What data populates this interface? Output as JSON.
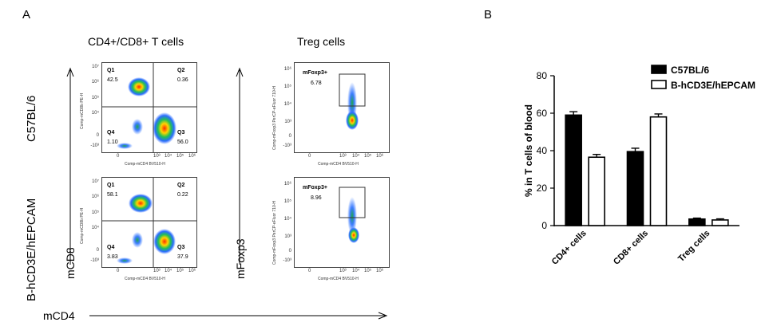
{
  "panel_a": {
    "letter": "A",
    "col_titles": [
      "CD4+/CD8+ T cells",
      "Treg cells"
    ],
    "row_labels": [
      "C57BL/6",
      "B-hCD3E/hEPCAM"
    ],
    "axis_mcd8": "mCD8",
    "axis_mfoxp3": "mFoxp3",
    "axis_mcd4": "mCD4",
    "flow_x_label": "Comp-mCD4 BV510-H",
    "flow_y_label_cd8": "Comp-mCD8b PE-H",
    "flow_y_label_foxp3": "Comp-mFoxp3 PerCP-eFluor 710-H",
    "quadrant_names": [
      "Q1",
      "Q2",
      "Q3",
      "Q4"
    ],
    "gate_name": "mFoxp3+",
    "ticks_y_cd8": [
      "10⁷",
      "10⁶",
      "10⁵",
      "10⁴",
      "0",
      "-10³"
    ],
    "ticks_y_foxp3": [
      "10⁶",
      "10⁵",
      "10⁴",
      "10³",
      "0",
      "-10³"
    ],
    "ticks_x": [
      "0",
      "10³",
      "10⁴",
      "10⁵",
      "10⁶"
    ],
    "rows": [
      {
        "q1": "42.5",
        "q2": "0.36",
        "q3": "56.0",
        "q4": "1.10",
        "foxp3": "6.78"
      },
      {
        "q1": "58.1",
        "q2": "0.22",
        "q3": "37.9",
        "q4": "3.83",
        "foxp3": "8.96"
      }
    ]
  },
  "panel_b": {
    "letter": "B"
  },
  "chart_data": {
    "type": "bar",
    "title": "",
    "xlabel": "",
    "ylabel": "% in T cells of blood",
    "ylim": [
      0,
      80
    ],
    "yticks": [
      "0",
      "20",
      "40",
      "60",
      "80"
    ],
    "categories": [
      "CD4+ cells",
      "CD8+ cells",
      "Treg cells"
    ],
    "legend_position": "top-right",
    "series": [
      {
        "name": "C57BL/6",
        "values": [
          59,
          39.5,
          3.5
        ],
        "errors": [
          1.8,
          1.8,
          0.5
        ],
        "fill": "#000000",
        "stroke": "#000000"
      },
      {
        "name": "B-hCD3E/hEPCAM",
        "values": [
          36.5,
          58,
          3
        ],
        "errors": [
          1.5,
          1.6,
          0.6
        ],
        "fill": "#ffffff",
        "stroke": "#000000"
      }
    ]
  }
}
